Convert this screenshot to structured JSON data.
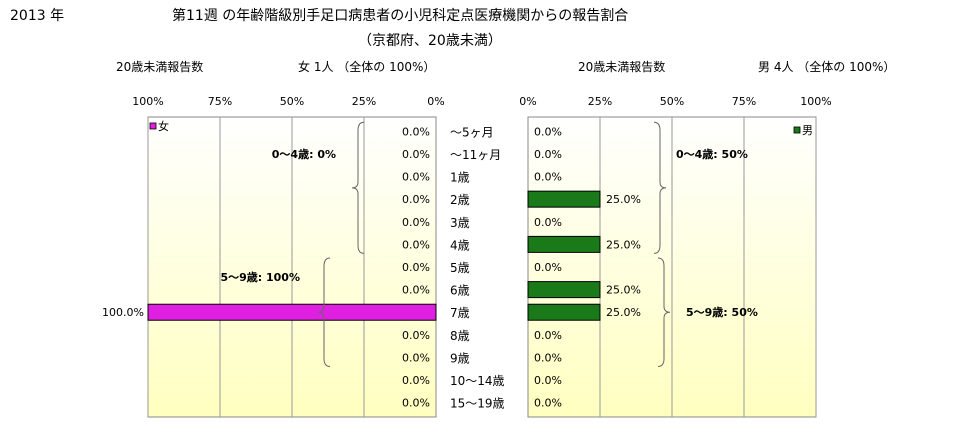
{
  "header": {
    "year": "2013 年",
    "title_line1": "第11週 の年齢階級別手足口病患者の小児科定点医療機関からの報告割合",
    "title_line2": "（京都府、20歳未満）"
  },
  "female": {
    "caption_left": "20歳未満報告数",
    "caption_right": "女 1人 （全体の 100%）",
    "legend": "女",
    "group1_label": "0～4歳: 0%",
    "group2_label": "5～9歳: 100%"
  },
  "male": {
    "caption_left": "20歳未満報告数",
    "caption_right": "男 4人 （全体の 100%）",
    "legend": "男",
    "group1_label": "0～4歳: 50%",
    "group2_label": "5～9歳: 50%"
  },
  "colors": {
    "female_bar": "#e020e0",
    "male_bar": "#1a7a1a",
    "plot_bg_top": "#ffffff",
    "plot_bg_bottom": "#ffffc0"
  },
  "chart_data": [
    {
      "type": "bar",
      "orientation": "horizontal",
      "direction": "right-to-left",
      "categories": [
        "～5ヶ月",
        "～11ヶ月",
        "1歳",
        "2歳",
        "3歳",
        "4歳",
        "5歳",
        "6歳",
        "7歳",
        "8歳",
        "9歳",
        "10～14歳",
        "15～19歳"
      ],
      "series": [
        {
          "name": "女",
          "values": [
            0,
            0,
            0,
            0,
            0,
            0,
            0,
            0,
            100,
            0,
            0,
            0,
            0
          ]
        }
      ],
      "value_labels": [
        "0.0%",
        "0.0%",
        "0.0%",
        "0.0%",
        "0.0%",
        "0.0%",
        "0.0%",
        "0.0%",
        "100.0%",
        "0.0%",
        "0.0%",
        "0.0%",
        "0.0%"
      ],
      "xlim": [
        0,
        100
      ],
      "ticks": [
        "100%",
        "75%",
        "50%",
        "25%",
        "0%"
      ],
      "grid": true,
      "legend": "top-left"
    },
    {
      "type": "bar",
      "orientation": "horizontal",
      "direction": "left-to-right",
      "categories": [
        "～5ヶ月",
        "～11ヶ月",
        "1歳",
        "2歳",
        "3歳",
        "4歳",
        "5歳",
        "6歳",
        "7歳",
        "8歳",
        "9歳",
        "10～14歳",
        "15～19歳"
      ],
      "series": [
        {
          "name": "男",
          "values": [
            0,
            0,
            0,
            25,
            0,
            25,
            0,
            25,
            25,
            0,
            0,
            0,
            0
          ]
        }
      ],
      "value_labels": [
        "0.0%",
        "0.0%",
        "0.0%",
        "25.0%",
        "0.0%",
        "25.0%",
        "0.0%",
        "25.0%",
        "25.0%",
        "0.0%",
        "0.0%",
        "0.0%",
        "0.0%"
      ],
      "xlim": [
        0,
        100
      ],
      "ticks": [
        "0%",
        "25%",
        "50%",
        "75%",
        "100%"
      ],
      "grid": true,
      "legend": "top-right"
    }
  ]
}
